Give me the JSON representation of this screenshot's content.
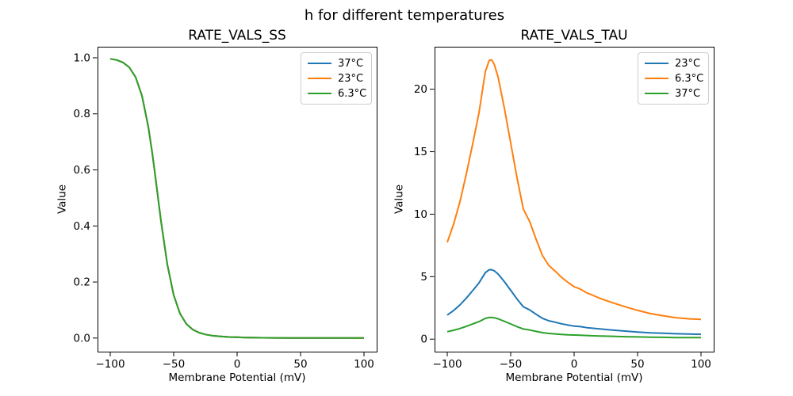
{
  "figure": {
    "suptitle": "h for different temperatures"
  },
  "colors": {
    "blue": "#1f77b4",
    "orange": "#ff7f0e",
    "green": "#2ca02c",
    "axis": "#000000",
    "legend_border": "#cccccc"
  },
  "chart_data": [
    {
      "type": "line",
      "title": "RATE_VALS_SS",
      "xlabel": "Membrane Potential (mV)",
      "ylabel": "Value",
      "xlim": [
        -110,
        110
      ],
      "ylim": [
        -0.0485,
        1.0395
      ],
      "grid": false,
      "legend_position": "upper-right",
      "xtick_values": [
        -100,
        -50,
        0,
        50,
        100
      ],
      "xtick_labels": [
        "−100",
        "−50",
        "0",
        "50",
        "100"
      ],
      "ytick_values": [
        0.0,
        0.2,
        0.4,
        0.6,
        0.8,
        1.0
      ],
      "ytick_labels": [
        "0.0",
        "0.2",
        "0.4",
        "0.6",
        "0.8",
        "1.0"
      ],
      "x": [
        -100,
        -95,
        -90,
        -85,
        -80,
        -75,
        -70,
        -67,
        -65,
        -63,
        -60,
        -55,
        -50,
        -45,
        -40,
        -35,
        -30,
        -25,
        -20,
        -15,
        -10,
        -5,
        0,
        5,
        10,
        15,
        20,
        30,
        40,
        50,
        60,
        70,
        80,
        90,
        100
      ],
      "series": [
        {
          "name": "37°C",
          "color": "#1f77b4",
          "values": [
            0.9963,
            0.9922,
            0.9836,
            0.966,
            0.931,
            0.8652,
            0.754,
            0.664,
            0.5962,
            0.525,
            0.4182,
            0.2627,
            0.1534,
            0.0874,
            0.0504,
            0.0303,
            0.0192,
            0.0128,
            0.0089,
            0.0065,
            0.0048,
            0.0036,
            0.0028,
            0.0022,
            0.0017,
            0.0013,
            0.001,
            0.0006,
            0.0004,
            0.0002,
            0.0001,
            0.0001,
            0.0001,
            0.0,
            0.0
          ]
        },
        {
          "name": "23°C",
          "color": "#ff7f0e",
          "values": [
            0.9963,
            0.9922,
            0.9836,
            0.966,
            0.931,
            0.8652,
            0.754,
            0.664,
            0.5962,
            0.525,
            0.4182,
            0.2627,
            0.1534,
            0.0874,
            0.0504,
            0.0303,
            0.0192,
            0.0128,
            0.0089,
            0.0065,
            0.0048,
            0.0036,
            0.0028,
            0.0022,
            0.0017,
            0.0013,
            0.001,
            0.0006,
            0.0004,
            0.0002,
            0.0001,
            0.0001,
            0.0001,
            0.0,
            0.0
          ]
        },
        {
          "name": "6.3°C",
          "color": "#2ca02c",
          "values": [
            0.9963,
            0.9922,
            0.9836,
            0.966,
            0.931,
            0.8652,
            0.754,
            0.664,
            0.5962,
            0.525,
            0.4182,
            0.2627,
            0.1534,
            0.0874,
            0.0504,
            0.0303,
            0.0192,
            0.0128,
            0.0089,
            0.0065,
            0.0048,
            0.0036,
            0.0028,
            0.0022,
            0.0017,
            0.0013,
            0.001,
            0.0006,
            0.0004,
            0.0002,
            0.0001,
            0.0001,
            0.0001,
            0.0,
            0.0
          ]
        }
      ]
    },
    {
      "type": "line",
      "title": "RATE_VALS_TAU",
      "xlabel": "Membrane Potential (mV)",
      "ylabel": "Value",
      "xlim": [
        -110,
        110
      ],
      "ylim": [
        -1.0,
        23.4
      ],
      "grid": false,
      "legend_position": "upper-right",
      "xtick_values": [
        -100,
        -50,
        0,
        50,
        100
      ],
      "xtick_labels": [
        "−100",
        "−50",
        "0",
        "50",
        "100"
      ],
      "ytick_values": [
        0,
        5,
        10,
        15,
        20
      ],
      "ytick_labels": [
        "0",
        "5",
        "10",
        "15",
        "20"
      ],
      "x": [
        -100,
        -95,
        -90,
        -85,
        -80,
        -75,
        -70,
        -67,
        -65,
        -63,
        -60,
        -55,
        -50,
        -45,
        -40,
        -35,
        -30,
        -25,
        -20,
        -15,
        -10,
        -5,
        0,
        5,
        10,
        15,
        20,
        30,
        40,
        50,
        60,
        70,
        80,
        90,
        100
      ],
      "series": [
        {
          "name": "23°C",
          "color": "#1f77b4",
          "values": [
            1.93,
            2.29,
            2.74,
            3.28,
            3.88,
            4.5,
            5.32,
            5.55,
            5.56,
            5.47,
            5.22,
            4.6,
            3.91,
            3.21,
            2.59,
            2.34,
            1.99,
            1.67,
            1.47,
            1.36,
            1.23,
            1.13,
            1.04,
            1.0,
            0.92,
            0.87,
            0.82,
            0.73,
            0.65,
            0.57,
            0.51,
            0.47,
            0.43,
            0.41,
            0.39
          ]
        },
        {
          "name": "6.3°C",
          "color": "#ff7f0e",
          "values": [
            7.75,
            9.2,
            11.0,
            13.2,
            15.6,
            18.1,
            21.4,
            22.3,
            22.35,
            22.0,
            21.0,
            18.5,
            15.7,
            12.9,
            10.4,
            9.4,
            8.0,
            6.7,
            5.9,
            5.45,
            4.95,
            4.55,
            4.2,
            4.0,
            3.7,
            3.5,
            3.28,
            2.92,
            2.6,
            2.3,
            2.05,
            1.88,
            1.72,
            1.63,
            1.58
          ]
        },
        {
          "name": "37°C",
          "color": "#2ca02c",
          "values": [
            0.6,
            0.71,
            0.85,
            1.02,
            1.21,
            1.4,
            1.66,
            1.73,
            1.73,
            1.71,
            1.63,
            1.43,
            1.22,
            1.0,
            0.81,
            0.73,
            0.62,
            0.52,
            0.46,
            0.42,
            0.38,
            0.35,
            0.33,
            0.31,
            0.29,
            0.27,
            0.25,
            0.23,
            0.2,
            0.18,
            0.16,
            0.15,
            0.13,
            0.13,
            0.12
          ]
        }
      ]
    }
  ]
}
